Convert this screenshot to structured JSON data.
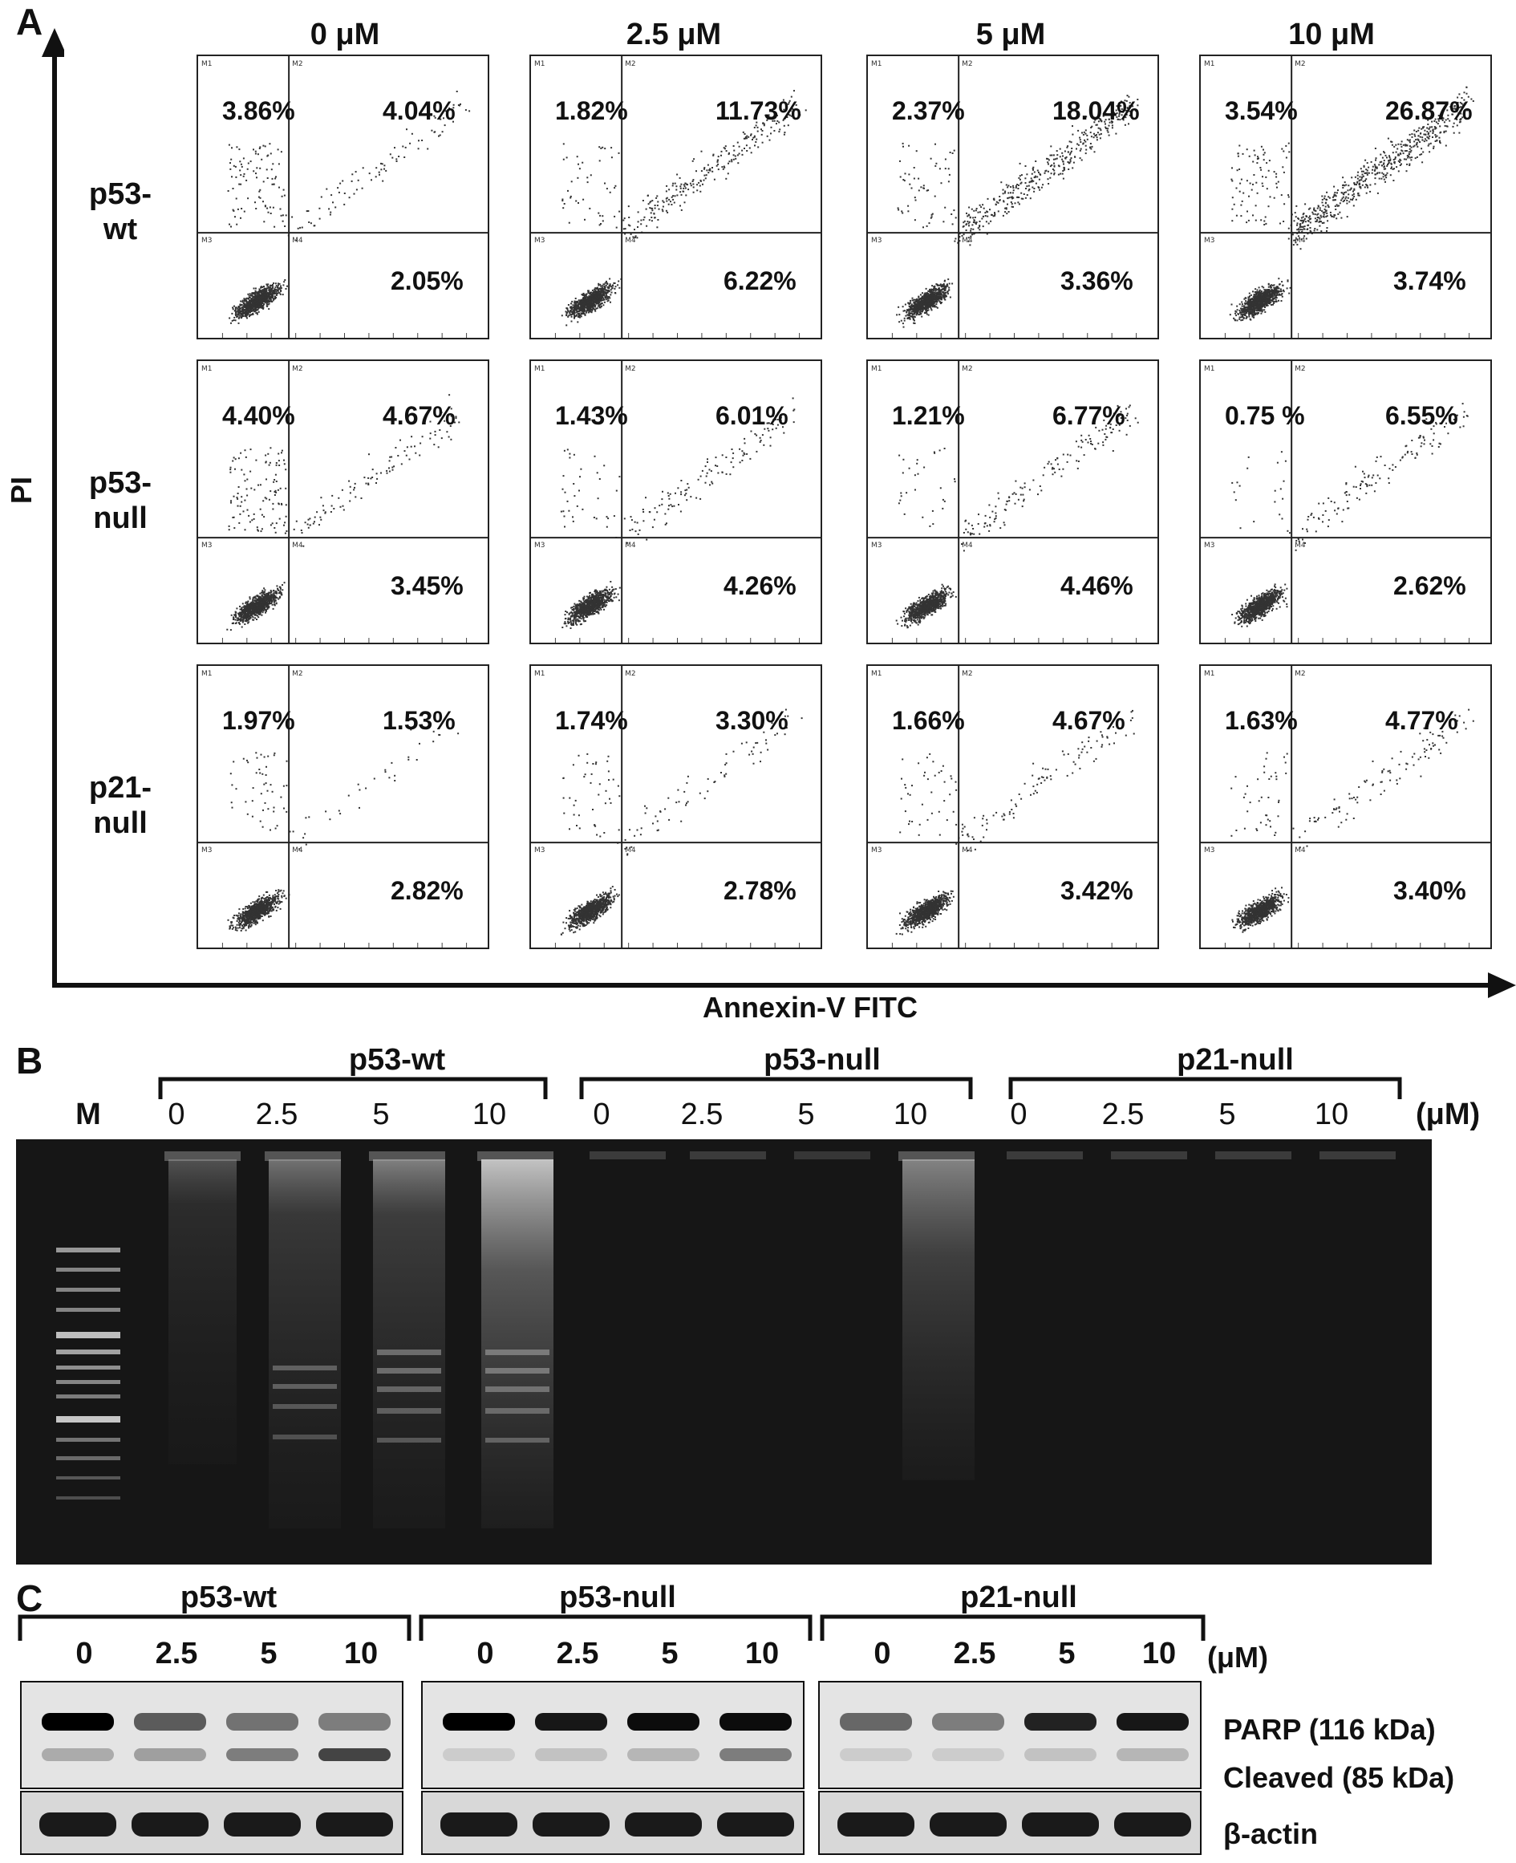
{
  "panel_a": {
    "letter": "A",
    "concentrations": [
      "0 μM",
      "2.5 μM",
      "5 μM",
      "10 μM"
    ],
    "rows": [
      {
        "label_line1": "p53-",
        "label_line2": "wt"
      },
      {
        "label_line1": "p53-",
        "label_line2": "null"
      },
      {
        "label_line1": "p21-",
        "label_line2": "null"
      }
    ],
    "y_axis": "PI",
    "x_axis": "Annexin-V FITC",
    "quadrant_tags": [
      "M1",
      "M2",
      "M3",
      "M4"
    ],
    "plots": [
      [
        {
          "ul": "3.86%",
          "ur": "4.04%",
          "lr": "2.05%"
        },
        {
          "ul": "1.82%",
          "ur": "11.73%",
          "lr": "6.22%"
        },
        {
          "ul": "2.37%",
          "ur": "18.04%",
          "lr": "3.36%"
        },
        {
          "ul": "3.54%",
          "ur": "26.87%",
          "lr": "3.74%"
        }
      ],
      [
        {
          "ul": "4.40%",
          "ur": "4.67%",
          "lr": "3.45%"
        },
        {
          "ul": "1.43%",
          "ur": "6.01%",
          "lr": "4.26%"
        },
        {
          "ul": "1.21%",
          "ur": "6.77%",
          "lr": "4.46%"
        },
        {
          "ul": "0.75 %",
          "ur": "6.55%",
          "lr": "2.62%"
        }
      ],
      [
        {
          "ul": "1.97%",
          "ur": "1.53%",
          "lr": "2.82%"
        },
        {
          "ul": "1.74%",
          "ur": "3.30%",
          "lr": "2.78%"
        },
        {
          "ul": "1.66%",
          "ur": "4.67%",
          "lr": "3.42%"
        },
        {
          "ul": "1.63%",
          "ur": "4.77%",
          "lr": "3.40%"
        }
      ]
    ]
  },
  "panel_b": {
    "letter": "B",
    "marker": "M",
    "groups": [
      "p53-wt",
      "p53-null",
      "p21-null"
    ],
    "lanes": [
      "0",
      "2.5",
      "5",
      "10"
    ],
    "unit": "(μM)"
  },
  "panel_c": {
    "letter": "C",
    "groups": [
      "p53-wt",
      "p53-null",
      "p21-null"
    ],
    "lanes": [
      "0",
      "2.5",
      "5",
      "10"
    ],
    "unit": "(μM)",
    "labels": {
      "parp": "PARP (116 kDa)",
      "cleaved": "Cleaved (85 kDa)",
      "actin": "β-actin"
    }
  }
}
